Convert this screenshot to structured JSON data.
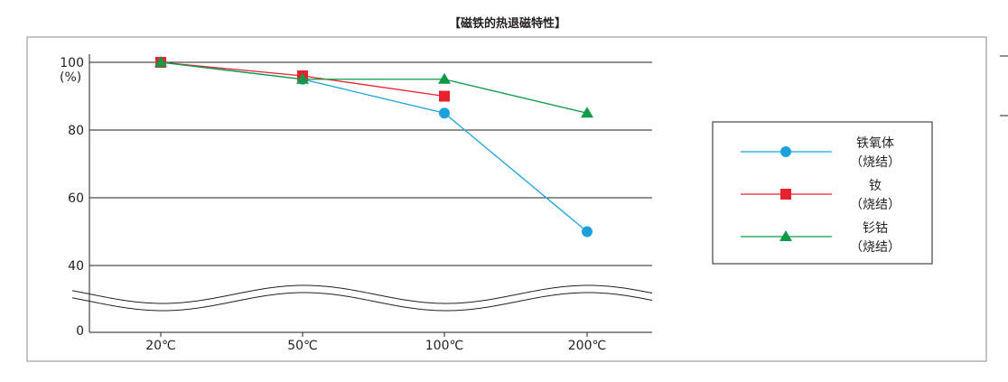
{
  "chart_data": {
    "type": "line",
    "title": "【磁铁的热退磁特性】",
    "x_categories": [
      "20℃",
      "50℃",
      "100℃",
      "200℃"
    ],
    "y_ticks": [
      {
        "value": 100,
        "label": "100"
      },
      {
        "value": 80,
        "label": "80"
      },
      {
        "value": 60,
        "label": "60"
      },
      {
        "value": 40,
        "label": "40"
      },
      {
        "value": 0,
        "label": "0"
      }
    ],
    "y_unit": "(%)",
    "axis_break": "between 40 and 0",
    "grid": true,
    "legend_position": "right",
    "series": [
      {
        "name_line1": "铁氧体",
        "name_line2": "（烧结）",
        "marker": "circle",
        "color": "#1ba1dc",
        "x": [
          "20℃",
          "50℃",
          "100℃",
          "200℃"
        ],
        "values": [
          100,
          95,
          85,
          50
        ]
      },
      {
        "name_line1": "钕",
        "name_line2": "（烧结）",
        "marker": "square",
        "color": "#e8212e",
        "x": [
          "20℃",
          "50℃",
          "100℃"
        ],
        "values": [
          100,
          96,
          90
        ]
      },
      {
        "name_line1": "钐钴",
        "name_line2": "（烧结）",
        "marker": "triangle",
        "color": "#0f9a48",
        "x": [
          "20℃",
          "50℃",
          "100℃",
          "200℃"
        ],
        "values": [
          100,
          95,
          95,
          85
        ]
      }
    ]
  }
}
